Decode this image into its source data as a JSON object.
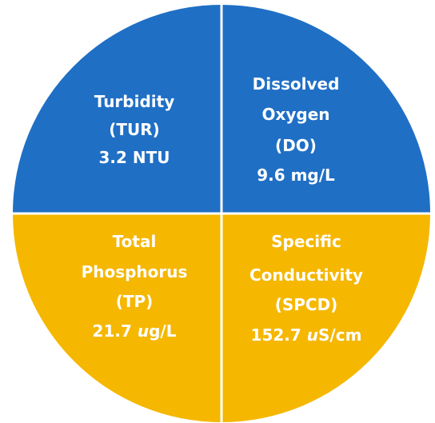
{
  "quadrants": [
    {
      "name": "turbidity",
      "lines": [
        [
          {
            "text": "Turbidity"
          }
        ],
        [
          {
            "text": "(TUR)"
          }
        ],
        [
          {
            "text": "3.2 NTU"
          }
        ]
      ]
    },
    {
      "name": "dissolved-oxygen",
      "lines": [
        [
          {
            "text": "Dissolved"
          }
        ],
        [
          {
            "text": "Oxygen"
          }
        ],
        [
          {
            "text": "(DO)"
          }
        ],
        [
          {
            "text": "9.6 mg/L"
          }
        ]
      ]
    },
    {
      "name": "total-phosphorus",
      "lines": [
        [
          {
            "text": "Total"
          }
        ],
        [
          {
            "text": "Phosphorus"
          }
        ],
        [
          {
            "text": "(TP)"
          }
        ],
        [
          {
            "text": "21.7 "
          },
          {
            "text": "u",
            "italic": true
          },
          {
            "text": "g/L"
          }
        ]
      ]
    },
    {
      "name": "specific-conductivity",
      "lines": [
        [
          {
            "text": "Specific"
          }
        ],
        [
          {
            "text": "Conductivity"
          }
        ],
        [
          {
            "text": "(SPCD)"
          }
        ],
        [
          {
            "text": "152.7 "
          },
          {
            "text": "u",
            "italic": true
          },
          {
            "text": "S/cm"
          }
        ]
      ]
    }
  ]
}
